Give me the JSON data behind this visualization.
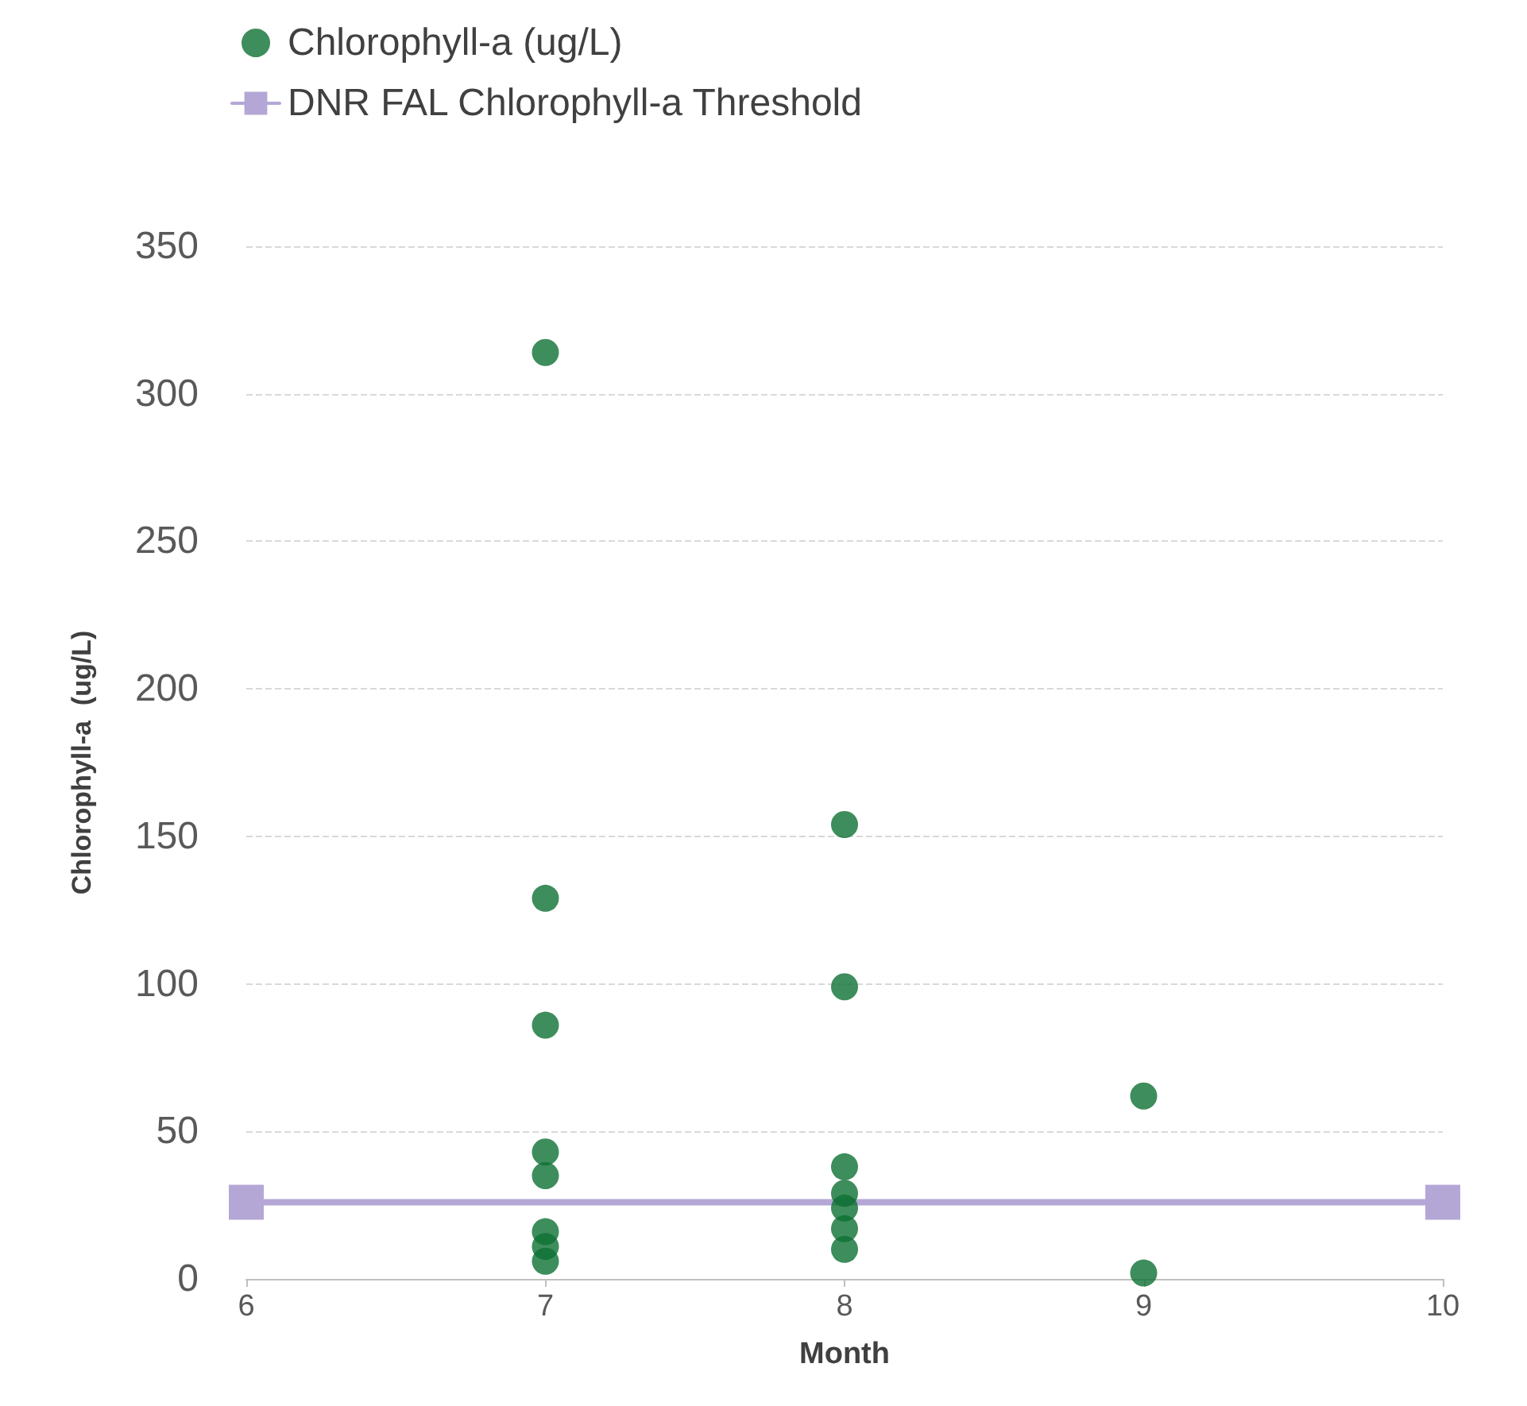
{
  "chart_data": {
    "type": "scatter",
    "xlabel": "Month",
    "ylabel": "Chlorophyll-a  (ug/L)",
    "series": [
      {
        "name": "Chlorophyll-a (ug/L)",
        "color": "#0e7033",
        "marker": "circle",
        "x": [
          7,
          7,
          7,
          7,
          7,
          7,
          7,
          7,
          8,
          8,
          8,
          8,
          8,
          8,
          8,
          9,
          9
        ],
        "values": [
          314,
          129,
          86,
          43,
          35,
          16,
          11,
          6,
          154,
          99,
          38,
          29,
          24,
          17,
          10,
          62,
          2
        ]
      },
      {
        "name": "DNR FAL Chlorophyll-a Threshold",
        "type": "line",
        "color": "#b4a7d6",
        "marker": "square",
        "line_style": "solid",
        "x": [
          6,
          10
        ],
        "values": [
          26,
          26
        ]
      }
    ],
    "xlim": [
      6,
      10
    ],
    "xticks": [
      6,
      7,
      8,
      9,
      10
    ],
    "ylim": [
      0,
      350
    ],
    "yticks": [
      0,
      50,
      100,
      150,
      200,
      250,
      300,
      350
    ],
    "grid": "y",
    "legend": "top left"
  }
}
